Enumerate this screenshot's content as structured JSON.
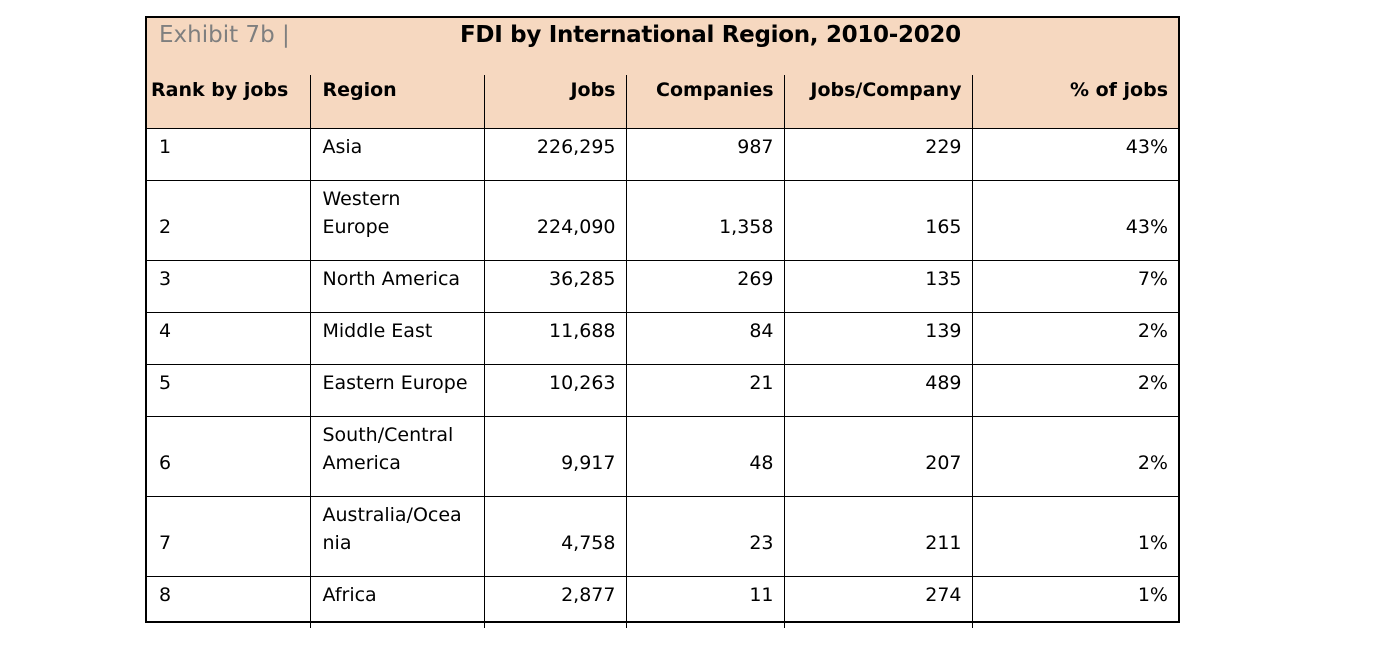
{
  "exhibit": {
    "label": "Exhibit 7b |",
    "title": "FDI by International Region, 2010-2020",
    "header_fill": "#f6d8c0"
  },
  "table": {
    "columns": [
      "Rank by jobs",
      "Region",
      "Jobs",
      "Companies",
      "Jobs/Company",
      "% of jobs"
    ],
    "rows": [
      {
        "rank": "1",
        "region_lines": [
          "Asia"
        ],
        "jobs": "226,295",
        "companies": "987",
        "jobs_per_company": "229",
        "pct_jobs": "43%"
      },
      {
        "rank": "2",
        "region_lines": [
          "Western",
          "Europe"
        ],
        "jobs": "224,090",
        "companies": "1,358",
        "jobs_per_company": "165",
        "pct_jobs": "43%"
      },
      {
        "rank": "3",
        "region_lines": [
          "North America"
        ],
        "jobs": "36,285",
        "companies": "269",
        "jobs_per_company": "135",
        "pct_jobs": "7%"
      },
      {
        "rank": "4",
        "region_lines": [
          "Middle East"
        ],
        "jobs": "11,688",
        "companies": "84",
        "jobs_per_company": "139",
        "pct_jobs": "2%"
      },
      {
        "rank": "5",
        "region_lines": [
          "Eastern Europe"
        ],
        "jobs": "10,263",
        "companies": "21",
        "jobs_per_company": "489",
        "pct_jobs": "2%"
      },
      {
        "rank": "6",
        "region_lines": [
          "South/Central",
          "America"
        ],
        "jobs": "9,917",
        "companies": "48",
        "jobs_per_company": "207",
        "pct_jobs": "2%"
      },
      {
        "rank": "7",
        "region_lines": [
          "Australia/Ocea",
          "nia"
        ],
        "jobs": "4,758",
        "companies": "23",
        "jobs_per_company": "211",
        "pct_jobs": "1%"
      },
      {
        "rank": "8",
        "region_lines": [
          "Africa"
        ],
        "jobs": "2,877",
        "companies": "11",
        "jobs_per_company": "274",
        "pct_jobs": "1%"
      }
    ]
  }
}
